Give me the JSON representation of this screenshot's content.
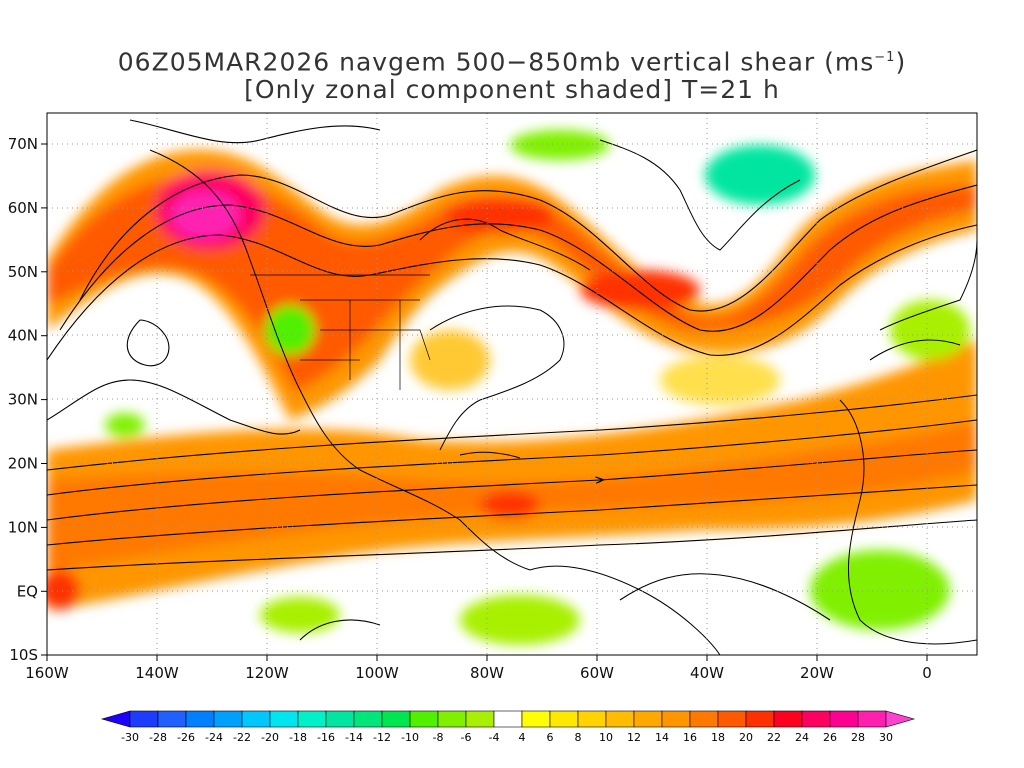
{
  "title": {
    "line1_prefix": "06Z05MAR2026 navgem 500−850mb vertical shear (ms",
    "line1_exp": "−1",
    "line1_suffix": ")",
    "line2": "[Only zonal component shaded] T=21 h"
  },
  "axes": {
    "lon_labels": [
      "160W",
      "140W",
      "120W",
      "100W",
      "80W",
      "60W",
      "40W",
      "20W",
      "0"
    ],
    "lat_labels": [
      "70N",
      "60N",
      "50N",
      "40N",
      "30N",
      "20N",
      "10N",
      "EQ",
      "10S"
    ]
  },
  "colorbar": {
    "labels": [
      "-30",
      "-28",
      "-26",
      "-24",
      "-22",
      "-20",
      "-18",
      "-16",
      "-14",
      "-12",
      "-10",
      "-8",
      "-6",
      "-4",
      "4",
      "6",
      "8",
      "10",
      "12",
      "14",
      "16",
      "18",
      "20",
      "22",
      "24",
      "26",
      "28",
      "30"
    ],
    "colors": [
      "#1e3cff",
      "#2060ff",
      "#0080ff",
      "#00a0ff",
      "#00c8ff",
      "#00e6f0",
      "#00f0c8",
      "#00e6a0",
      "#00e67a",
      "#00e650",
      "#50f000",
      "#80f000",
      "#a8f000",
      "#ffffff",
      "#ffff00",
      "#ffe800",
      "#ffd200",
      "#ffbc00",
      "#ffa800",
      "#ff9600",
      "#ff7800",
      "#ff5a00",
      "#ff3000",
      "#ff0020",
      "#ff0060",
      "#ff0090",
      "#ff20b0"
    ],
    "low_arrow_color": "#1e00ff",
    "high_arrow_color": "#ff40d0"
  }
}
